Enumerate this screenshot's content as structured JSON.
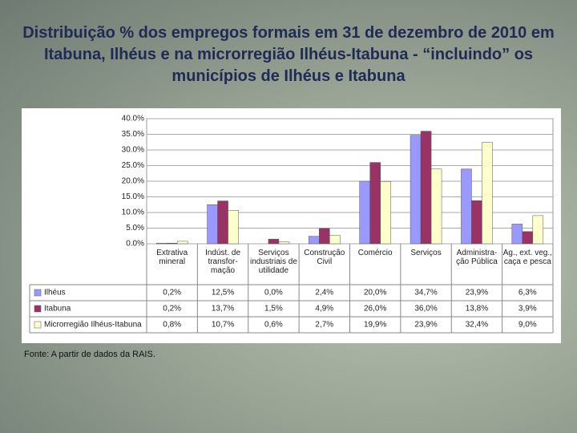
{
  "chart_data": {
    "type": "bar",
    "title": "Distribuição % dos empregos formais em 31 de dezembro de 2010 em Itabuna, Ilhéus e na microrregião Ilhéus-Itabuna - “incluindo” os municípios de Ilhéus e Itabuna",
    "source": "Fonte: A partir de dados da RAIS.",
    "categories": [
      "Extrativa mineral",
      "Indúst. de transfor-mação",
      "Serviços industriais de utilidade",
      "Construção Civil",
      "Comércio",
      "Serviços",
      "Administra-ção Pública",
      "Ag., ext. veg., caça e pesca"
    ],
    "series": [
      {
        "name": "Ilhéus",
        "color": "#9999ff",
        "values": [
          0.2,
          12.5,
          0.0,
          2.4,
          20.0,
          34.7,
          23.9,
          6.3
        ],
        "value_labels": [
          "0,2%",
          "12,5%",
          "0,0%",
          "2,4%",
          "20,0%",
          "34,7%",
          "23,9%",
          "6,3%"
        ]
      },
      {
        "name": "Itabuna",
        "color": "#993366",
        "values": [
          0.2,
          13.7,
          1.5,
          4.9,
          26.0,
          36.0,
          13.8,
          3.9
        ],
        "value_labels": [
          "0,2%",
          "13,7%",
          "1,5%",
          "4,9%",
          "26,0%",
          "36,0%",
          "13,8%",
          "3,9%"
        ]
      },
      {
        "name": "Microrregião Ilhéus-Itabuna",
        "color": "#ffffcc",
        "values": [
          0.8,
          10.7,
          0.6,
          2.7,
          19.9,
          23.9,
          32.4,
          9.0
        ],
        "value_labels": [
          "0,8%",
          "10,7%",
          "0,6%",
          "2,7%",
          "19,9%",
          "23,9%",
          "32,4%",
          "9,0%"
        ]
      }
    ],
    "ylim": [
      0,
      40
    ],
    "yticks": [
      {
        "value": 0,
        "label": "0.0%"
      },
      {
        "value": 5,
        "label": "5.0%"
      },
      {
        "value": 10,
        "label": "10.0%"
      },
      {
        "value": 15,
        "label": "15.0%"
      },
      {
        "value": 20,
        "label": "20.0%"
      },
      {
        "value": 25,
        "label": "25.0%"
      },
      {
        "value": 30,
        "label": "30.0%"
      },
      {
        "value": 35,
        "label": "35.0%"
      },
      {
        "value": 40,
        "label": "40.0%"
      }
    ],
    "grid": true
  }
}
